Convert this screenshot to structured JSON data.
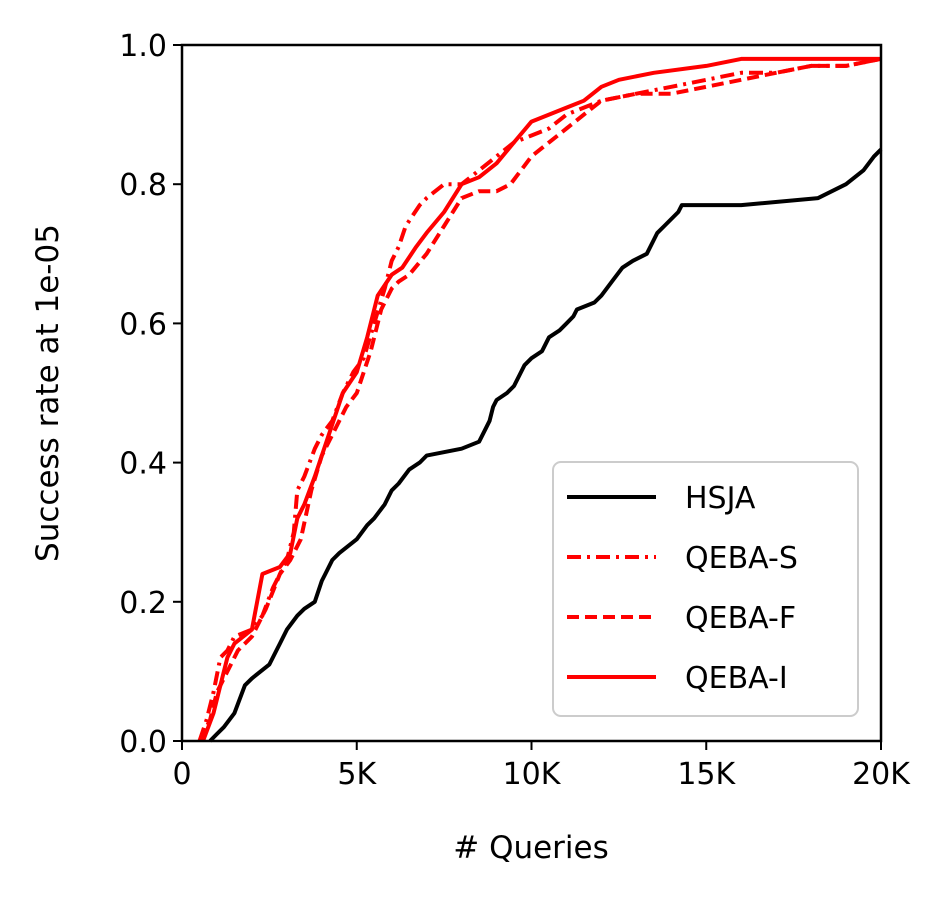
{
  "chart_data": {
    "type": "line",
    "title": "",
    "xlabel": "# Queries",
    "ylabel": "Success rate at 1e-05",
    "xlim": [
      0,
      20000
    ],
    "ylim": [
      0,
      1.0
    ],
    "x_ticks": [
      0,
      5000,
      10000,
      15000,
      20000
    ],
    "x_tick_labels": [
      "0",
      "5K",
      "10K",
      "15K",
      "20K"
    ],
    "y_ticks": [
      0,
      0.2,
      0.4,
      0.6,
      0.8,
      1.0
    ],
    "y_tick_labels": [
      "0.0",
      "0.2",
      "0.4",
      "0.6",
      "0.8",
      "1.0"
    ],
    "grid": false,
    "legend_position": "bottom-right",
    "series": [
      {
        "name": "HSJA",
        "color": "#000000",
        "dash": "solid",
        "x": [
          800,
          1000,
          1200,
          1500,
          1800,
          2000,
          2500,
          2700,
          2800,
          3000,
          3300,
          3500,
          3800,
          4000,
          4100,
          4200,
          4300,
          4500,
          5000,
          5300,
          5500,
          5800,
          6000,
          6200,
          6500,
          6800,
          7000,
          8000,
          8500,
          8700,
          8800,
          8900,
          9000,
          9300,
          9500,
          9700,
          9800,
          10000,
          10300,
          10500,
          10800,
          11000,
          11200,
          11300,
          11800,
          12000,
          12300,
          12600,
          12900,
          13300,
          13500,
          13600,
          13800,
          14000,
          14200,
          14300,
          16000,
          18200,
          19000,
          19500,
          19800,
          20000
        ],
        "y": [
          0.0,
          0.01,
          0.02,
          0.04,
          0.08,
          0.09,
          0.11,
          0.13,
          0.14,
          0.16,
          0.18,
          0.19,
          0.2,
          0.23,
          0.24,
          0.25,
          0.26,
          0.27,
          0.29,
          0.31,
          0.32,
          0.34,
          0.36,
          0.37,
          0.39,
          0.4,
          0.41,
          0.42,
          0.43,
          0.45,
          0.46,
          0.48,
          0.49,
          0.5,
          0.51,
          0.53,
          0.54,
          0.55,
          0.56,
          0.58,
          0.59,
          0.6,
          0.61,
          0.62,
          0.63,
          0.64,
          0.66,
          0.68,
          0.69,
          0.7,
          0.72,
          0.73,
          0.74,
          0.75,
          0.76,
          0.77,
          0.77,
          0.78,
          0.8,
          0.82,
          0.84,
          0.85
        ]
      },
      {
        "name": "QEBA-S",
        "color": "#ff0000",
        "dash": "dashdot",
        "x": [
          500,
          700,
          900,
          1100,
          1300,
          1500,
          2000,
          2300,
          2600,
          3000,
          3200,
          3300,
          3500,
          3800,
          4000,
          4300,
          4600,
          4900,
          5200,
          5500,
          5800,
          6000,
          6200,
          6400,
          6800,
          7000,
          7500,
          8000,
          8500,
          9000,
          9500,
          10000,
          10500,
          11000,
          11500,
          12000,
          13000,
          14000,
          15000,
          16000,
          17000,
          18000,
          19000,
          20000
        ],
        "y": [
          0.0,
          0.03,
          0.07,
          0.12,
          0.13,
          0.15,
          0.16,
          0.18,
          0.22,
          0.26,
          0.3,
          0.36,
          0.38,
          0.42,
          0.44,
          0.46,
          0.5,
          0.53,
          0.55,
          0.6,
          0.65,
          0.69,
          0.71,
          0.74,
          0.77,
          0.78,
          0.8,
          0.8,
          0.82,
          0.84,
          0.86,
          0.87,
          0.88,
          0.9,
          0.91,
          0.92,
          0.93,
          0.94,
          0.95,
          0.96,
          0.96,
          0.97,
          0.97,
          0.98
        ]
      },
      {
        "name": "QEBA-F",
        "color": "#ff0000",
        "dash": "dashed",
        "x": [
          500,
          800,
          1000,
          1300,
          1600,
          2000,
          2400,
          2800,
          3100,
          3400,
          3700,
          4000,
          4300,
          4700,
          5000,
          5400,
          5700,
          6000,
          6200,
          6500,
          7000,
          7500,
          8000,
          8500,
          9000,
          9400,
          9700,
          10000,
          10500,
          11000,
          11500,
          12000,
          13000,
          14000,
          15000,
          16000,
          17000,
          18000,
          19000,
          20000
        ],
        "y": [
          0.0,
          0.03,
          0.07,
          0.1,
          0.13,
          0.15,
          0.19,
          0.24,
          0.26,
          0.29,
          0.36,
          0.41,
          0.44,
          0.48,
          0.5,
          0.56,
          0.62,
          0.65,
          0.66,
          0.67,
          0.7,
          0.74,
          0.78,
          0.79,
          0.79,
          0.8,
          0.82,
          0.84,
          0.86,
          0.88,
          0.9,
          0.92,
          0.93,
          0.93,
          0.94,
          0.95,
          0.96,
          0.97,
          0.97,
          0.98
        ]
      },
      {
        "name": "QEBA-I",
        "color": "#ff0000",
        "dash": "solid",
        "x": [
          600,
          900,
          1100,
          1300,
          1500,
          2000,
          2300,
          2800,
          3100,
          3300,
          3500,
          3800,
          4200,
          4600,
          5000,
          5300,
          5600,
          6000,
          6300,
          6700,
          7000,
          7500,
          8000,
          8500,
          9000,
          9500,
          10000,
          10500,
          11000,
          11500,
          12000,
          12500,
          13500,
          15000,
          16000,
          17000,
          18000,
          20000
        ],
        "y": [
          0.0,
          0.04,
          0.08,
          0.12,
          0.14,
          0.16,
          0.24,
          0.25,
          0.27,
          0.32,
          0.34,
          0.38,
          0.44,
          0.5,
          0.53,
          0.58,
          0.64,
          0.67,
          0.68,
          0.71,
          0.73,
          0.76,
          0.8,
          0.81,
          0.83,
          0.86,
          0.89,
          0.9,
          0.91,
          0.92,
          0.94,
          0.95,
          0.96,
          0.97,
          0.98,
          0.98,
          0.98,
          0.98
        ]
      }
    ]
  }
}
